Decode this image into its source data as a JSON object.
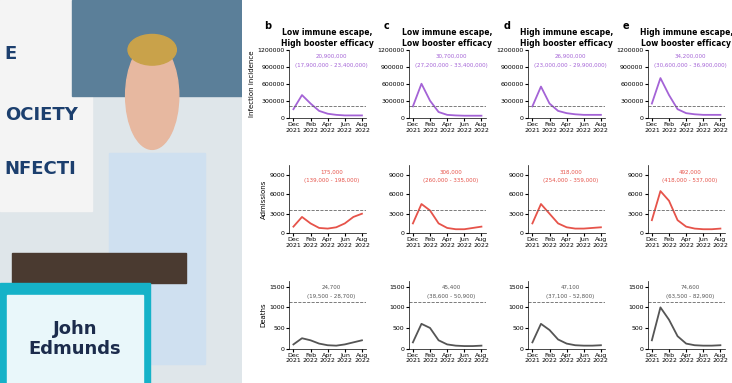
{
  "speaker": {
    "name": "John\nEdmunds",
    "banner": [
      "E",
      "OCIETY",
      "NFECTI"
    ]
  },
  "chart_data": [
    {
      "type": "line",
      "panel": "b",
      "title": "Low immune escape,\nHigh booster efficacy",
      "ylabel": "Infection incidence",
      "categories": [
        "Dec\n2021",
        null,
        "Feb\n2022",
        null,
        "Apr\n2022",
        null,
        "Jun\n2022",
        null,
        "Aug\n2022"
      ],
      "values": [
        150000,
        400000,
        250000,
        120000,
        70000,
        50000,
        40000,
        40000,
        40000
      ],
      "color": "#a463d6",
      "threshold": 200000,
      "ylim": [
        0,
        1200000
      ],
      "yticks": [
        0,
        300000,
        600000,
        900000,
        1200000
      ],
      "annotations": [
        "20,900,000",
        "(17,900,000 - 23,400,000)"
      ]
    },
    {
      "type": "line",
      "panel": "c",
      "title": "Low immune escape,\nLow booster efficacy",
      "categories": [
        "Dec\n2021",
        null,
        "Feb\n2022",
        null,
        "Apr\n2022",
        null,
        "Jun\n2022",
        null,
        "Aug\n2022"
      ],
      "values": [
        200000,
        600000,
        300000,
        100000,
        50000,
        40000,
        35000,
        35000,
        35000
      ],
      "color": "#a463d6",
      "threshold": 200000,
      "ylim": [
        0,
        1200000
      ],
      "yticks": [
        0,
        300000,
        600000,
        900000,
        1200000
      ],
      "annotations": [
        "30,700,000",
        "(27,200,000 - 33,400,000)"
      ]
    },
    {
      "type": "line",
      "panel": "d",
      "title": "High immune escape,\nHigh booster efficacy",
      "categories": [
        "Dec\n2021",
        null,
        "Feb\n2022",
        null,
        "Apr\n2022",
        null,
        "Jun\n2022",
        null,
        "Aug\n2022"
      ],
      "values": [
        200000,
        550000,
        250000,
        120000,
        80000,
        60000,
        50000,
        50000,
        50000
      ],
      "color": "#a463d6",
      "threshold": 200000,
      "ylim": [
        0,
        1200000
      ],
      "yticks": [
        0,
        300000,
        600000,
        900000,
        1200000
      ],
      "annotations": [
        "26,900,000",
        "(23,000,000 - 29,900,000)"
      ]
    },
    {
      "type": "line",
      "panel": "e",
      "title": "High immune escape,\nLow booster efficacy",
      "categories": [
        "Dec\n2021",
        null,
        "Feb\n2022",
        null,
        "Apr\n2022",
        null,
        "Jun\n2022",
        null,
        "Aug\n2022"
      ],
      "values": [
        250000,
        700000,
        400000,
        150000,
        80000,
        60000,
        50000,
        50000,
        50000
      ],
      "color": "#a463d6",
      "threshold": 200000,
      "ylim": [
        0,
        1200000
      ],
      "yticks": [
        0,
        300000,
        600000,
        900000,
        1200000
      ],
      "annotations": [
        "34,200,000",
        "(30,600,000 - 36,900,000)"
      ]
    },
    {
      "type": "line",
      "ylabel": "Admissions",
      "categories": [
        "Dec\n2021",
        null,
        "Feb\n2022",
        null,
        "Apr\n2022",
        null,
        "Jun\n2022",
        null,
        "Aug\n2022"
      ],
      "values": [
        1000,
        2500,
        1500,
        800,
        700,
        900,
        1500,
        2500,
        3000
      ],
      "color": "#e6534a",
      "threshold": 3500,
      "ylim": [
        0,
        10500
      ],
      "yticks": [
        0,
        3000,
        6000,
        9000
      ],
      "annotations": [
        "175,000",
        "(139,000 - 198,000)"
      ]
    },
    {
      "type": "line",
      "categories": [
        "Dec\n2021",
        null,
        "Feb\n2022",
        null,
        "Apr\n2022",
        null,
        "Jun\n2022",
        null,
        "Aug\n2022"
      ],
      "values": [
        1500,
        4500,
        3500,
        1500,
        800,
        600,
        600,
        800,
        1000
      ],
      "color": "#e6534a",
      "threshold": 3500,
      "ylim": [
        0,
        10500
      ],
      "yticks": [
        0,
        3000,
        6000,
        9000
      ],
      "annotations": [
        "306,000",
        "(260,000 - 335,000)"
      ]
    },
    {
      "type": "line",
      "categories": [
        "Dec\n2021",
        null,
        "Feb\n2022",
        null,
        "Apr\n2022",
        null,
        "Jun\n2022",
        null,
        "Aug\n2022"
      ],
      "values": [
        1500,
        4500,
        3000,
        1500,
        900,
        700,
        700,
        800,
        900
      ],
      "color": "#e6534a",
      "threshold": 3500,
      "ylim": [
        0,
        10500
      ],
      "yticks": [
        0,
        3000,
        6000,
        9000
      ],
      "annotations": [
        "318,000",
        "(254,000 - 359,000)"
      ]
    },
    {
      "type": "line",
      "categories": [
        "Dec\n2021",
        null,
        "Feb\n2022",
        null,
        "Apr\n2022",
        null,
        "Jun\n2022",
        null,
        "Aug\n2022"
      ],
      "values": [
        2000,
        6500,
        5000,
        2000,
        1000,
        700,
        600,
        600,
        700
      ],
      "color": "#e6534a",
      "threshold": 3500,
      "ylim": [
        0,
        10500
      ],
      "yticks": [
        0,
        3000,
        6000,
        9000
      ],
      "annotations": [
        "492,000",
        "(418,000 - 537,000)"
      ]
    },
    {
      "type": "line",
      "ylabel": "Deaths",
      "categories": [
        "Dec\n2021",
        null,
        "Feb\n2022",
        null,
        "Apr\n2022",
        null,
        "Jun\n2022",
        null,
        "Aug\n2022"
      ],
      "values": [
        100,
        250,
        200,
        120,
        80,
        70,
        100,
        150,
        200
      ],
      "color": "#555555",
      "threshold": 1130,
      "ylim": [
        0,
        1650
      ],
      "yticks": [
        0,
        500,
        1000,
        1500
      ],
      "annotations": [
        "24,700",
        "(19,500 - 28,700)"
      ]
    },
    {
      "type": "line",
      "categories": [
        "Dec\n2021",
        null,
        "Feb\n2022",
        null,
        "Apr\n2022",
        null,
        "Jun\n2022",
        null,
        "Aug\n2022"
      ],
      "values": [
        150,
        600,
        500,
        200,
        100,
        70,
        60,
        60,
        70
      ],
      "color": "#555555",
      "threshold": 1130,
      "ylim": [
        0,
        1650
      ],
      "yticks": [
        0,
        500,
        1000,
        1500
      ],
      "annotations": [
        "45,400",
        "(38,600 - 50,900)"
      ]
    },
    {
      "type": "line",
      "categories": [
        "Dec\n2021",
        null,
        "Feb\n2022",
        null,
        "Apr\n2022",
        null,
        "Jun\n2022",
        null,
        "Aug\n2022"
      ],
      "values": [
        150,
        600,
        450,
        220,
        120,
        80,
        70,
        70,
        80
      ],
      "color": "#555555",
      "threshold": 1130,
      "ylim": [
        0,
        1650
      ],
      "yticks": [
        0,
        500,
        1000,
        1500
      ],
      "annotations": [
        "47,100",
        "(37,100 - 52,800)"
      ]
    },
    {
      "type": "line",
      "categories": [
        "Dec\n2021",
        null,
        "Feb\n2022",
        null,
        "Apr\n2022",
        null,
        "Jun\n2022",
        null,
        "Aug\n2022"
      ],
      "values": [
        200,
        1000,
        700,
        300,
        120,
        80,
        70,
        70,
        80
      ],
      "color": "#555555",
      "threshold": 1130,
      "ylim": [
        0,
        1650
      ],
      "yticks": [
        0,
        500,
        1000,
        1500
      ],
      "annotations": [
        "74,600",
        "(63,500 - 82,900)"
      ]
    }
  ]
}
